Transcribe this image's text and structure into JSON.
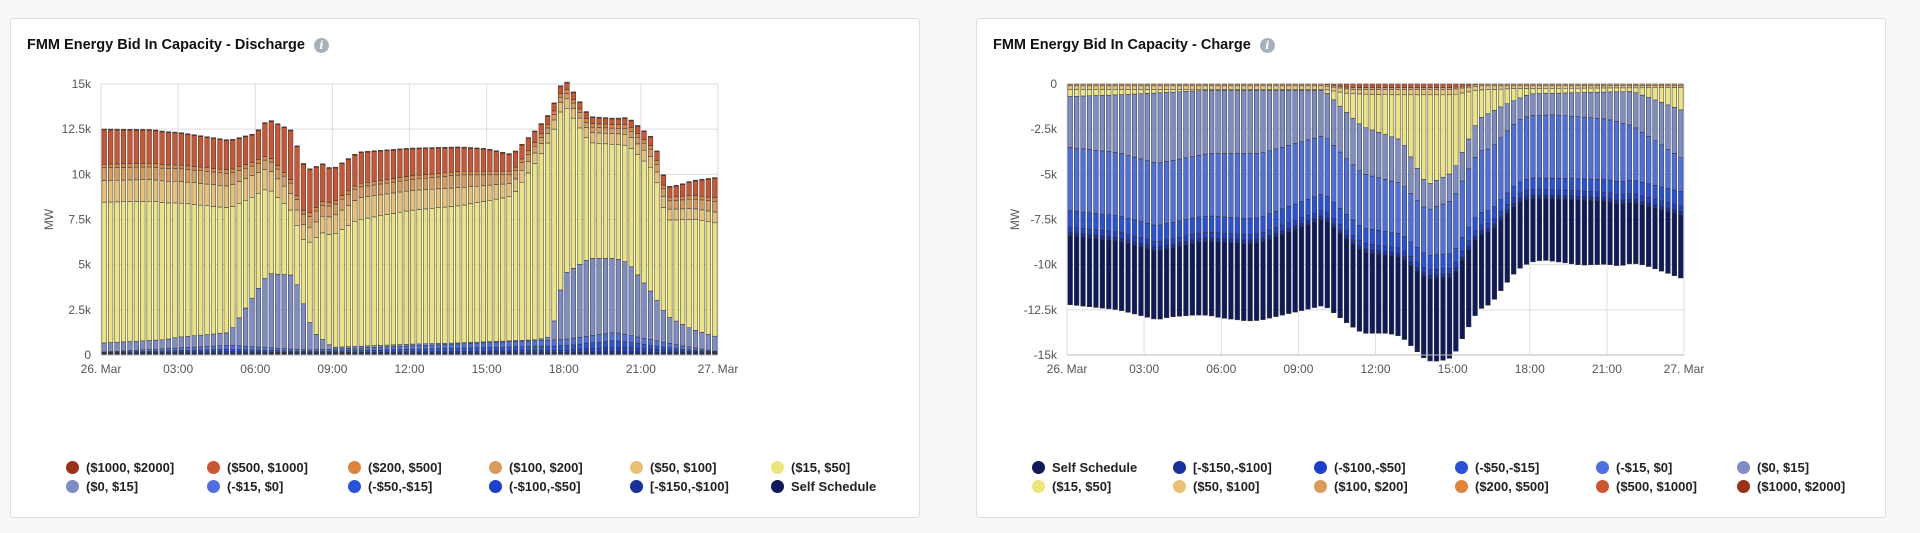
{
  "colors": {
    "bucket_1000_2000": "#9b3218",
    "bucket_500_1000": "#cc5632",
    "bucket_200_500": "#e0833a",
    "bucket_100_200": "#d99b5a",
    "bucket_50_100": "#e8c171",
    "bucket_15_50": "#eee47c",
    "bucket_0_15": "#7f8dc7",
    "bucket_m15_0": "#4d6fe0",
    "bucket_m50_m15": "#2851dc",
    "bucket_m100_m50": "#1c3fcc",
    "bucket_m150_m100": "#16309e",
    "self_schedule": "#0e1a5c"
  },
  "chart_data": [
    {
      "type": "stacked-bar",
      "title": "FMM Energy Bid In Capacity - Discharge",
      "ylabel": "MW",
      "ylim": [
        0,
        15000
      ],
      "yticks": [
        0,
        2500,
        5000,
        7500,
        10000,
        12500,
        15000
      ],
      "ytick_labels": [
        "0",
        "2.5k",
        "5k",
        "7.5k",
        "10k",
        "12.5k",
        "15k"
      ],
      "xtick_labels": [
        "26. Mar",
        "03:00",
        "06:00",
        "09:00",
        "12:00",
        "15:00",
        "18:00",
        "21:00",
        "27. Mar"
      ],
      "interval_minutes": 15,
      "n_intervals": 96,
      "legend": [
        "($1000, $2000]",
        "($500, $1000]",
        "($200, $500]",
        "($100, $200]",
        "($50, $100]",
        "($15, $50]",
        "($0, $15]",
        "(-$15, $0]",
        "(-$50,-$15]",
        "(-$100,-$50]",
        "[-$150,-$100]",
        "Self Schedule"
      ],
      "legend_colors": [
        "#9b3218",
        "#cc5632",
        "#e0833a",
        "#d99b5a",
        "#e8c171",
        "#eee47c",
        "#7f8dc7",
        "#4d6fe0",
        "#2851dc",
        "#1c3fcc",
        "#16309e",
        "#0e1a5c"
      ],
      "stack_order": [
        "Self Schedule",
        "[-$150,-$100]",
        "(-$100,-$50]",
        "(-$50,-$15]",
        "(-$15, $0]",
        "($0, $15]",
        "($15, $50]",
        "($50, $100]",
        "($100, $200]",
        "($200, $500]",
        "($500, $1000]",
        "($1000, $2000]"
      ],
      "segments": [
        {
          "name": "Self Schedule",
          "knots": [
            [
              0,
              80
            ],
            [
              32,
              80
            ],
            [
              96,
              80
            ]
          ]
        },
        {
          "name": "[-$150,-$100]",
          "knots": [
            [
              0,
              20
            ],
            [
              20,
              40
            ],
            [
              40,
              30
            ],
            [
              72,
              60
            ],
            [
              80,
              120
            ],
            [
              96,
              40
            ]
          ]
        },
        {
          "name": "(-$100,-$50]",
          "knots": [
            [
              0,
              20
            ],
            [
              20,
              80
            ],
            [
              32,
              20
            ],
            [
              72,
              120
            ],
            [
              80,
              250
            ],
            [
              90,
              80
            ],
            [
              96,
              20
            ]
          ]
        },
        {
          "name": "(-$50,-$15]",
          "knots": [
            [
              0,
              20
            ],
            [
              20,
              120
            ],
            [
              32,
              60
            ],
            [
              72,
              250
            ],
            [
              80,
              350
            ],
            [
              90,
              100
            ],
            [
              96,
              20
            ]
          ]
        },
        {
          "name": "(-$15, $0]",
          "knots": [
            [
              0,
              20
            ],
            [
              20,
              220
            ],
            [
              32,
              80
            ],
            [
              72,
              350
            ],
            [
              80,
              450
            ],
            [
              90,
              200
            ],
            [
              96,
              30
            ]
          ]
        },
        {
          "name": "($0, $15]",
          "knots": [
            [
              0,
              500
            ],
            [
              10,
              500
            ],
            [
              12,
              600
            ],
            [
              20,
              700
            ],
            [
              26,
              4100
            ],
            [
              30,
              4100
            ],
            [
              33,
              1000
            ],
            [
              36,
              100
            ],
            [
              48,
              100
            ],
            [
              56,
              50
            ],
            [
              68,
              50
            ],
            [
              70,
              200
            ],
            [
              72,
              3600
            ],
            [
              76,
              4300
            ],
            [
              82,
              4000
            ],
            [
              86,
              2500
            ],
            [
              88,
              1500
            ],
            [
              92,
              1000
            ],
            [
              96,
              800
            ]
          ]
        },
        {
          "name": "($15, $50]",
          "knots": [
            [
              0,
              7800
            ],
            [
              8,
              7700
            ],
            [
              20,
              6900
            ],
            [
              24,
              5400
            ],
            [
              31,
              3100
            ],
            [
              34,
              5800
            ],
            [
              40,
              7000
            ],
            [
              48,
              7400
            ],
            [
              56,
              7600
            ],
            [
              64,
              8000
            ],
            [
              70,
              11000
            ],
            [
              76,
              6400
            ],
            [
              80,
              6300
            ],
            [
              86,
              6900
            ],
            [
              88,
              5300
            ],
            [
              92,
              6100
            ],
            [
              96,
              6300
            ]
          ]
        },
        {
          "name": "($50, $100]",
          "knots": [
            [
              0,
              1200
            ],
            [
              24,
              1200
            ],
            [
              32,
              800
            ],
            [
              40,
              1200
            ],
            [
              56,
              1000
            ],
            [
              70,
              500
            ],
            [
              80,
              600
            ],
            [
              96,
              600
            ]
          ]
        },
        {
          "name": "($100, $200]",
          "knots": [
            [
              0,
              700
            ],
            [
              20,
              700
            ],
            [
              24,
              500
            ],
            [
              32,
              600
            ],
            [
              48,
              600
            ],
            [
              56,
              700
            ],
            [
              70,
              300
            ],
            [
              80,
              300
            ],
            [
              96,
              600
            ]
          ]
        },
        {
          "name": "($200, $500]",
          "knots": [
            [
              0,
              200
            ],
            [
              96,
              200
            ]
          ]
        },
        {
          "name": "($500, $1000]",
          "knots": [
            [
              0,
              1900
            ],
            [
              10,
              1800
            ],
            [
              20,
              1600
            ],
            [
              24,
              1500
            ],
            [
              30,
              2800
            ],
            [
              36,
              1800
            ],
            [
              48,
              1500
            ],
            [
              60,
              1200
            ],
            [
              70,
              400
            ],
            [
              80,
              300
            ],
            [
              90,
              600
            ],
            [
              96,
              1100
            ]
          ]
        },
        {
          "name": "($1000, $2000]",
          "knots": [
            [
              0,
              50
            ],
            [
              96,
              50
            ]
          ]
        }
      ]
    },
    {
      "type": "stacked-bar",
      "title": "FMM Energy Bid In Capacity - Charge",
      "ylabel": "MW",
      "ylim": [
        -15000,
        0
      ],
      "yticks": [
        0,
        -2500,
        -5000,
        -7500,
        -10000,
        -12500,
        -15000
      ],
      "ytick_labels": [
        "0",
        "-2.5k",
        "-5k",
        "-7.5k",
        "-10k",
        "-12.5k",
        "-15k"
      ],
      "xtick_labels": [
        "26. Mar",
        "03:00",
        "06:00",
        "09:00",
        "12:00",
        "15:00",
        "18:00",
        "21:00",
        "27. Mar"
      ],
      "interval_minutes": 15,
      "n_intervals": 96,
      "legend": [
        "Self Schedule",
        "[-$150,-$100]",
        "(-$100,-$50]",
        "(-$50,-$15]",
        "(-$15, $0]",
        "($0, $15]",
        "($15, $50]",
        "($50, $100]",
        "($100, $200]",
        "($200, $500]",
        "($500, $1000]",
        "($1000, $2000]"
      ],
      "legend_colors": [
        "#0e1a5c",
        "#16309e",
        "#1c3fcc",
        "#2851dc",
        "#4d6fe0",
        "#7f8dc7",
        "#eee47c",
        "#e8c171",
        "#d99b5a",
        "#e0833a",
        "#cc5632",
        "#9b3218"
      ],
      "stack_order": [
        "($1000, $2000]",
        "($500, $1000]",
        "($200, $500]",
        "($100, $200]",
        "($50, $100]",
        "($15, $50]",
        "($0, $15]",
        "(-$15, $0]",
        "(-$50,-$15]",
        "(-$100,-$50]",
        "[-$150,-$100]",
        "Self Schedule"
      ],
      "segments": [
        {
          "name": "($1000, $2000]",
          "knots": [
            [
              0,
              0
            ],
            [
              96,
              0
            ]
          ]
        },
        {
          "name": "($500, $1000]",
          "knots": [
            [
              0,
              0
            ],
            [
              40,
              0
            ],
            [
              44,
              200
            ],
            [
              60,
              200
            ],
            [
              64,
              0
            ],
            [
              96,
              0
            ]
          ]
        },
        {
          "name": "($200, $500]",
          "knots": [
            [
              0,
              0
            ],
            [
              96,
              0
            ]
          ]
        },
        {
          "name": "($100, $200]",
          "knots": [
            [
              0,
              100
            ],
            [
              96,
              100
            ]
          ]
        },
        {
          "name": "($50, $100]",
          "knots": [
            [
              0,
              200
            ],
            [
              40,
              200
            ],
            [
              50,
              300
            ],
            [
              60,
              300
            ],
            [
              70,
              150
            ],
            [
              96,
              100
            ]
          ]
        },
        {
          "name": "($15, $50]",
          "knots": [
            [
              0,
              400
            ],
            [
              8,
              300
            ],
            [
              14,
              200
            ],
            [
              22,
              50
            ],
            [
              40,
              50
            ],
            [
              46,
              1800
            ],
            [
              52,
              2500
            ],
            [
              56,
              5000
            ],
            [
              60,
              4300
            ],
            [
              64,
              1600
            ],
            [
              68,
              900
            ],
            [
              72,
              300
            ],
            [
              88,
              200
            ],
            [
              96,
              1300
            ]
          ]
        },
        {
          "name": "($0, $15]",
          "knots": [
            [
              0,
              2800
            ],
            [
              8,
              3200
            ],
            [
              14,
              3900
            ],
            [
              22,
              3500
            ],
            [
              30,
              3500
            ],
            [
              40,
              2500
            ],
            [
              46,
              2600
            ],
            [
              52,
              2400
            ],
            [
              56,
              1400
            ],
            [
              62,
              1600
            ],
            [
              66,
              2000
            ],
            [
              70,
              1200
            ],
            [
              76,
              1200
            ],
            [
              84,
              1500
            ],
            [
              96,
              2700
            ]
          ]
        },
        {
          "name": "(-$15, $0]",
          "knots": [
            [
              0,
              3500
            ],
            [
              8,
              3500
            ],
            [
              20,
              3400
            ],
            [
              28,
              3600
            ],
            [
              40,
              3200
            ],
            [
              52,
              2800
            ],
            [
              56,
              2500
            ],
            [
              64,
              3400
            ],
            [
              76,
              3500
            ],
            [
              86,
              3300
            ],
            [
              96,
              1800
            ]
          ]
        },
        {
          "name": "(-$50,-$15]",
          "knots": [
            [
              0,
              900
            ],
            [
              40,
              900
            ],
            [
              50,
              800
            ],
            [
              60,
              800
            ],
            [
              70,
              600
            ],
            [
              96,
              800
            ]
          ]
        },
        {
          "name": "(-$100,-$50]",
          "knots": [
            [
              0,
              300
            ],
            [
              96,
              300
            ]
          ]
        },
        {
          "name": "[-$150,-$100]",
          "knots": [
            [
              0,
              200
            ],
            [
              96,
              200
            ]
          ]
        },
        {
          "name": "Self Schedule",
          "knots": [
            [
              0,
              3800
            ],
            [
              16,
              3800
            ],
            [
              24,
              4200
            ],
            [
              30,
              4300
            ],
            [
              40,
              4800
            ],
            [
              50,
              4300
            ],
            [
              58,
              4600
            ],
            [
              66,
              4000
            ],
            [
              74,
              3400
            ],
            [
              80,
              3600
            ],
            [
              90,
              3300
            ],
            [
              96,
              3500
            ]
          ]
        }
      ]
    }
  ]
}
